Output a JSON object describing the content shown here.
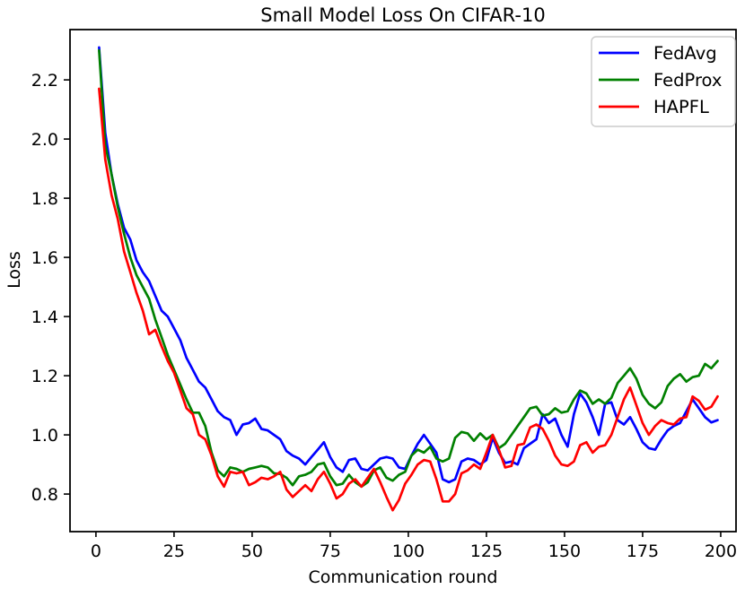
{
  "chart_data": {
    "type": "line",
    "title": "Small Model Loss On CIFAR-10",
    "xlabel": "Communication round",
    "ylabel": "Loss",
    "xlim": [
      -8.3,
      204.9
    ],
    "ylim": [
      0.673,
      2.37
    ],
    "xticks": [
      0,
      25,
      50,
      75,
      100,
      125,
      150,
      175,
      200
    ],
    "yticks": [
      0.8,
      1.0,
      1.2,
      1.4,
      1.6,
      1.8,
      2.0,
      2.2
    ],
    "grid": false,
    "legend_position": "upper right",
    "axis_color": "#000000",
    "legend_border_color": "#cccccc",
    "series": [
      {
        "name": "FedAvg",
        "color": "#0000ff",
        "x": [
          1,
          3,
          5,
          7,
          9,
          11,
          13,
          15,
          17,
          19,
          21,
          23,
          25,
          27,
          29,
          31,
          33,
          35,
          37,
          39,
          41,
          43,
          45,
          47,
          49,
          51,
          53,
          55,
          57,
          59,
          61,
          63,
          65,
          67,
          69,
          71,
          73,
          75,
          77,
          79,
          81,
          83,
          85,
          87,
          89,
          91,
          93,
          95,
          97,
          99,
          101,
          103,
          105,
          107,
          109,
          111,
          113,
          115,
          117,
          119,
          121,
          123,
          125,
          127,
          129,
          131,
          133,
          135,
          137,
          139,
          141,
          143,
          145,
          147,
          149,
          151,
          153,
          155,
          157,
          159,
          161,
          163,
          165,
          167,
          169,
          171,
          173,
          175,
          177,
          179,
          181,
          183,
          185,
          187,
          189,
          191,
          193,
          195,
          197,
          199
        ],
        "y": [
          2.31,
          2.02,
          1.88,
          1.78,
          1.7,
          1.66,
          1.59,
          1.55,
          1.52,
          1.47,
          1.42,
          1.4,
          1.36,
          1.32,
          1.26,
          1.22,
          1.18,
          1.16,
          1.12,
          1.08,
          1.06,
          1.05,
          1.0,
          1.035,
          1.04,
          1.055,
          1.02,
          1.015,
          1.0,
          0.985,
          0.945,
          0.93,
          0.92,
          0.9,
          0.925,
          0.95,
          0.975,
          0.925,
          0.89,
          0.875,
          0.915,
          0.92,
          0.885,
          0.88,
          0.9,
          0.92,
          0.925,
          0.92,
          0.89,
          0.885,
          0.93,
          0.97,
          1.0,
          0.97,
          0.94,
          0.85,
          0.84,
          0.85,
          0.91,
          0.92,
          0.915,
          0.9,
          0.915,
          0.99,
          0.94,
          0.905,
          0.91,
          0.9,
          0.955,
          0.97,
          0.985,
          1.07,
          1.04,
          1.055,
          1.0,
          0.96,
          1.07,
          1.14,
          1.11,
          1.06,
          1.0,
          1.105,
          1.11,
          1.05,
          1.035,
          1.06,
          1.02,
          0.975,
          0.955,
          0.95,
          0.985,
          1.015,
          1.03,
          1.04,
          1.08,
          1.12,
          1.09,
          1.06,
          1.042,
          1.05
        ]
      },
      {
        "name": "FedProx",
        "color": "#008000",
        "x": [
          1,
          3,
          5,
          7,
          9,
          11,
          13,
          15,
          17,
          19,
          21,
          23,
          25,
          27,
          29,
          31,
          33,
          35,
          37,
          39,
          41,
          43,
          45,
          47,
          49,
          51,
          53,
          55,
          57,
          59,
          61,
          63,
          65,
          67,
          69,
          71,
          73,
          75,
          77,
          79,
          81,
          83,
          85,
          87,
          89,
          91,
          93,
          95,
          97,
          99,
          101,
          103,
          105,
          107,
          109,
          111,
          113,
          115,
          117,
          119,
          121,
          123,
          125,
          127,
          129,
          131,
          133,
          135,
          137,
          139,
          141,
          143,
          145,
          147,
          149,
          151,
          153,
          155,
          157,
          159,
          161,
          163,
          165,
          167,
          169,
          171,
          173,
          175,
          177,
          179,
          181,
          183,
          185,
          187,
          189,
          191,
          193,
          195,
          197,
          199
        ],
        "y": [
          2.3,
          1.98,
          1.88,
          1.77,
          1.68,
          1.6,
          1.54,
          1.5,
          1.46,
          1.39,
          1.33,
          1.27,
          1.22,
          1.17,
          1.12,
          1.075,
          1.075,
          1.03,
          0.94,
          0.88,
          0.86,
          0.89,
          0.885,
          0.875,
          0.885,
          0.89,
          0.895,
          0.89,
          0.87,
          0.868,
          0.855,
          0.83,
          0.86,
          0.865,
          0.875,
          0.9,
          0.905,
          0.86,
          0.83,
          0.835,
          0.865,
          0.84,
          0.825,
          0.84,
          0.88,
          0.89,
          0.855,
          0.845,
          0.865,
          0.875,
          0.93,
          0.95,
          0.94,
          0.96,
          0.92,
          0.91,
          0.92,
          0.99,
          1.01,
          1.005,
          0.98,
          1.005,
          0.985,
          1.0,
          0.955,
          0.97,
          1.0,
          1.03,
          1.06,
          1.09,
          1.095,
          1.065,
          1.07,
          1.09,
          1.075,
          1.08,
          1.12,
          1.15,
          1.14,
          1.105,
          1.12,
          1.105,
          1.125,
          1.175,
          1.2,
          1.225,
          1.19,
          1.135,
          1.105,
          1.09,
          1.11,
          1.165,
          1.19,
          1.205,
          1.18,
          1.195,
          1.2,
          1.24,
          1.225,
          1.25
        ]
      },
      {
        "name": "HAPFL",
        "color": "#ff0000",
        "x": [
          1,
          3,
          5,
          7,
          9,
          11,
          13,
          15,
          17,
          19,
          21,
          23,
          25,
          27,
          29,
          31,
          33,
          35,
          37,
          39,
          41,
          43,
          45,
          47,
          49,
          51,
          53,
          55,
          57,
          59,
          61,
          63,
          65,
          67,
          69,
          71,
          73,
          75,
          77,
          79,
          81,
          83,
          85,
          87,
          89,
          91,
          93,
          95,
          97,
          99,
          101,
          103,
          105,
          107,
          109,
          111,
          113,
          115,
          117,
          119,
          121,
          123,
          125,
          127,
          129,
          131,
          133,
          135,
          137,
          139,
          141,
          143,
          145,
          147,
          149,
          151,
          153,
          155,
          157,
          159,
          161,
          163,
          165,
          167,
          169,
          171,
          173,
          175,
          177,
          179,
          181,
          183,
          185,
          187,
          189,
          191,
          193,
          195,
          197,
          199
        ],
        "y": [
          2.17,
          1.93,
          1.81,
          1.73,
          1.62,
          1.55,
          1.48,
          1.42,
          1.34,
          1.355,
          1.3,
          1.25,
          1.21,
          1.15,
          1.09,
          1.07,
          1.0,
          0.985,
          0.93,
          0.86,
          0.825,
          0.875,
          0.87,
          0.875,
          0.83,
          0.84,
          0.855,
          0.85,
          0.86,
          0.875,
          0.815,
          0.79,
          0.81,
          0.83,
          0.81,
          0.85,
          0.875,
          0.835,
          0.785,
          0.8,
          0.835,
          0.85,
          0.825,
          0.855,
          0.885,
          0.84,
          0.79,
          0.745,
          0.78,
          0.835,
          0.865,
          0.9,
          0.915,
          0.91,
          0.85,
          0.775,
          0.775,
          0.8,
          0.87,
          0.88,
          0.9,
          0.885,
          0.94,
          1.0,
          0.95,
          0.89,
          0.895,
          0.965,
          0.97,
          1.025,
          1.035,
          1.02,
          0.98,
          0.93,
          0.9,
          0.895,
          0.91,
          0.965,
          0.975,
          0.94,
          0.96,
          0.965,
          1.0,
          1.06,
          1.12,
          1.16,
          1.1,
          1.04,
          1.0,
          1.03,
          1.05,
          1.04,
          1.035,
          1.055,
          1.06,
          1.13,
          1.115,
          1.085,
          1.095,
          1.13
        ]
      }
    ]
  }
}
